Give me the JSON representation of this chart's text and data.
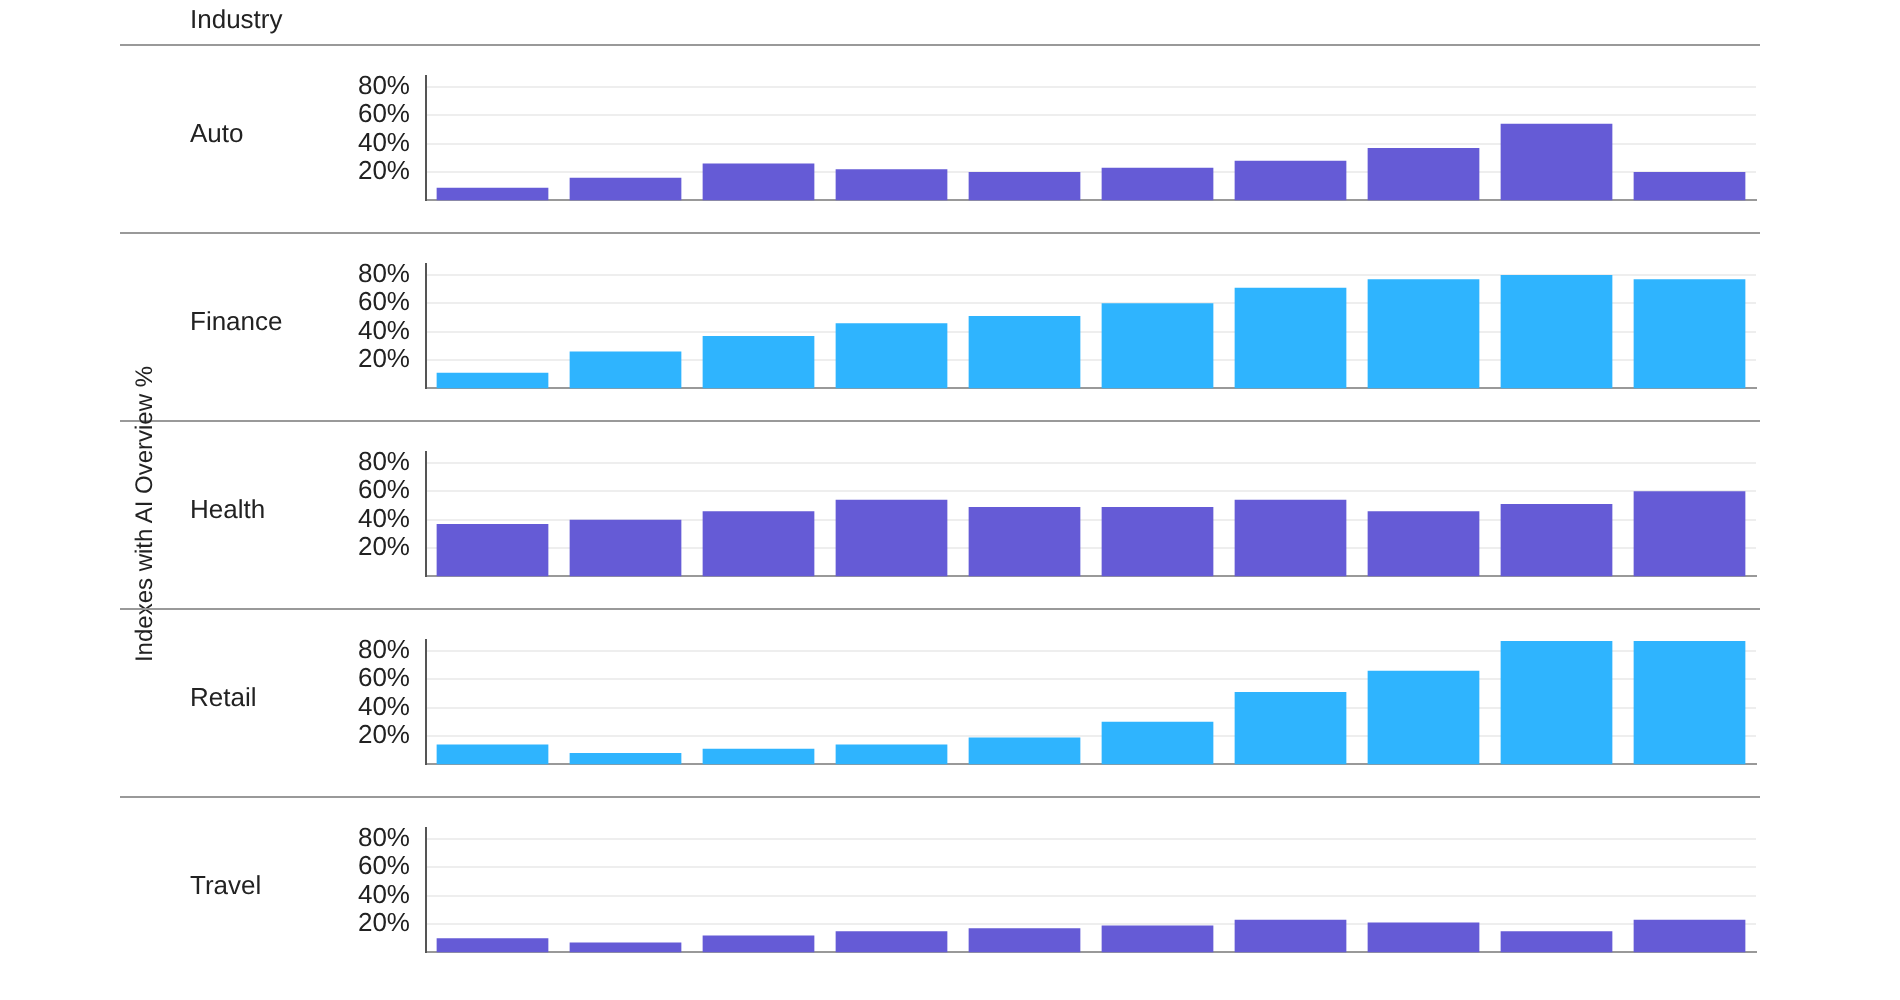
{
  "chart_data": [
    {
      "type": "bar",
      "title": "Auto",
      "annotations": [
        "Industry"
      ],
      "categories": [
        null,
        null,
        null,
        null,
        null,
        null,
        null,
        null,
        null,
        null
      ],
      "values": [
        9,
        16,
        26,
        22,
        20,
        23,
        28,
        37,
        54,
        20
      ],
      "color": "#655bd6",
      "ylim": [
        0,
        88
      ],
      "yticks": [
        {
          "value": 20,
          "label": "20%"
        },
        {
          "value": 40,
          "label": "40%"
        },
        {
          "value": 60,
          "label": "60%"
        },
        {
          "value": 80,
          "label": "80%"
        }
      ],
      "grid": "y",
      "tick_labels": "y"
    },
    {
      "type": "bar",
      "title": "Finance",
      "categories": [
        null,
        null,
        null,
        null,
        null,
        null,
        null,
        null,
        null,
        null
      ],
      "values": [
        11,
        26,
        37,
        46,
        51,
        60,
        71,
        77,
        80,
        77
      ],
      "color": "#2fb4fe",
      "ylim": [
        0,
        88
      ],
      "yticks": [
        {
          "value": 20,
          "label": "20%"
        },
        {
          "value": 40,
          "label": "40%"
        },
        {
          "value": 60,
          "label": "60%"
        },
        {
          "value": 80,
          "label": "80%"
        }
      ],
      "grid": "y",
      "tick_labels": "y"
    },
    {
      "type": "bar",
      "title": "Health",
      "ylabel": "Indexes with AI Overview %",
      "categories": [
        null,
        null,
        null,
        null,
        null,
        null,
        null,
        null,
        null,
        null
      ],
      "values": [
        37,
        40,
        46,
        54,
        49,
        49,
        54,
        46,
        51,
        60
      ],
      "color": "#655bd6",
      "ylim": [
        0,
        88
      ],
      "yticks": [
        {
          "value": 20,
          "label": "20%"
        },
        {
          "value": 40,
          "label": "40%"
        },
        {
          "value": 60,
          "label": "60%"
        },
        {
          "value": 80,
          "label": "80%"
        }
      ],
      "grid": "y",
      "tick_labels": "y"
    },
    {
      "type": "bar",
      "title": "Retail",
      "categories": [
        null,
        null,
        null,
        null,
        null,
        null,
        null,
        null,
        null,
        null
      ],
      "values": [
        14,
        8,
        11,
        14,
        19,
        30,
        51,
        66,
        87,
        87
      ],
      "color": "#2fb4fe",
      "ylim": [
        0,
        88
      ],
      "yticks": [
        {
          "value": 20,
          "label": "20%"
        },
        {
          "value": 40,
          "label": "40%"
        },
        {
          "value": 60,
          "label": "60%"
        },
        {
          "value": 80,
          "label": "80%"
        }
      ],
      "grid": "y",
      "tick_labels": "y"
    },
    {
      "type": "bar",
      "title": "Travel",
      "categories": [
        null,
        null,
        null,
        null,
        null,
        null,
        null,
        null,
        null,
        null
      ],
      "values": [
        10,
        7,
        12,
        15,
        17,
        19,
        23,
        21,
        15,
        23
      ],
      "color": "#655bd6",
      "ylim": [
        0,
        88
      ],
      "yticks": [
        {
          "value": 20,
          "label": "20%"
        },
        {
          "value": 40,
          "label": "40%"
        },
        {
          "value": 60,
          "label": "60%"
        },
        {
          "value": 80,
          "label": "80%"
        }
      ],
      "grid": "y",
      "tick_labels": "y"
    }
  ]
}
